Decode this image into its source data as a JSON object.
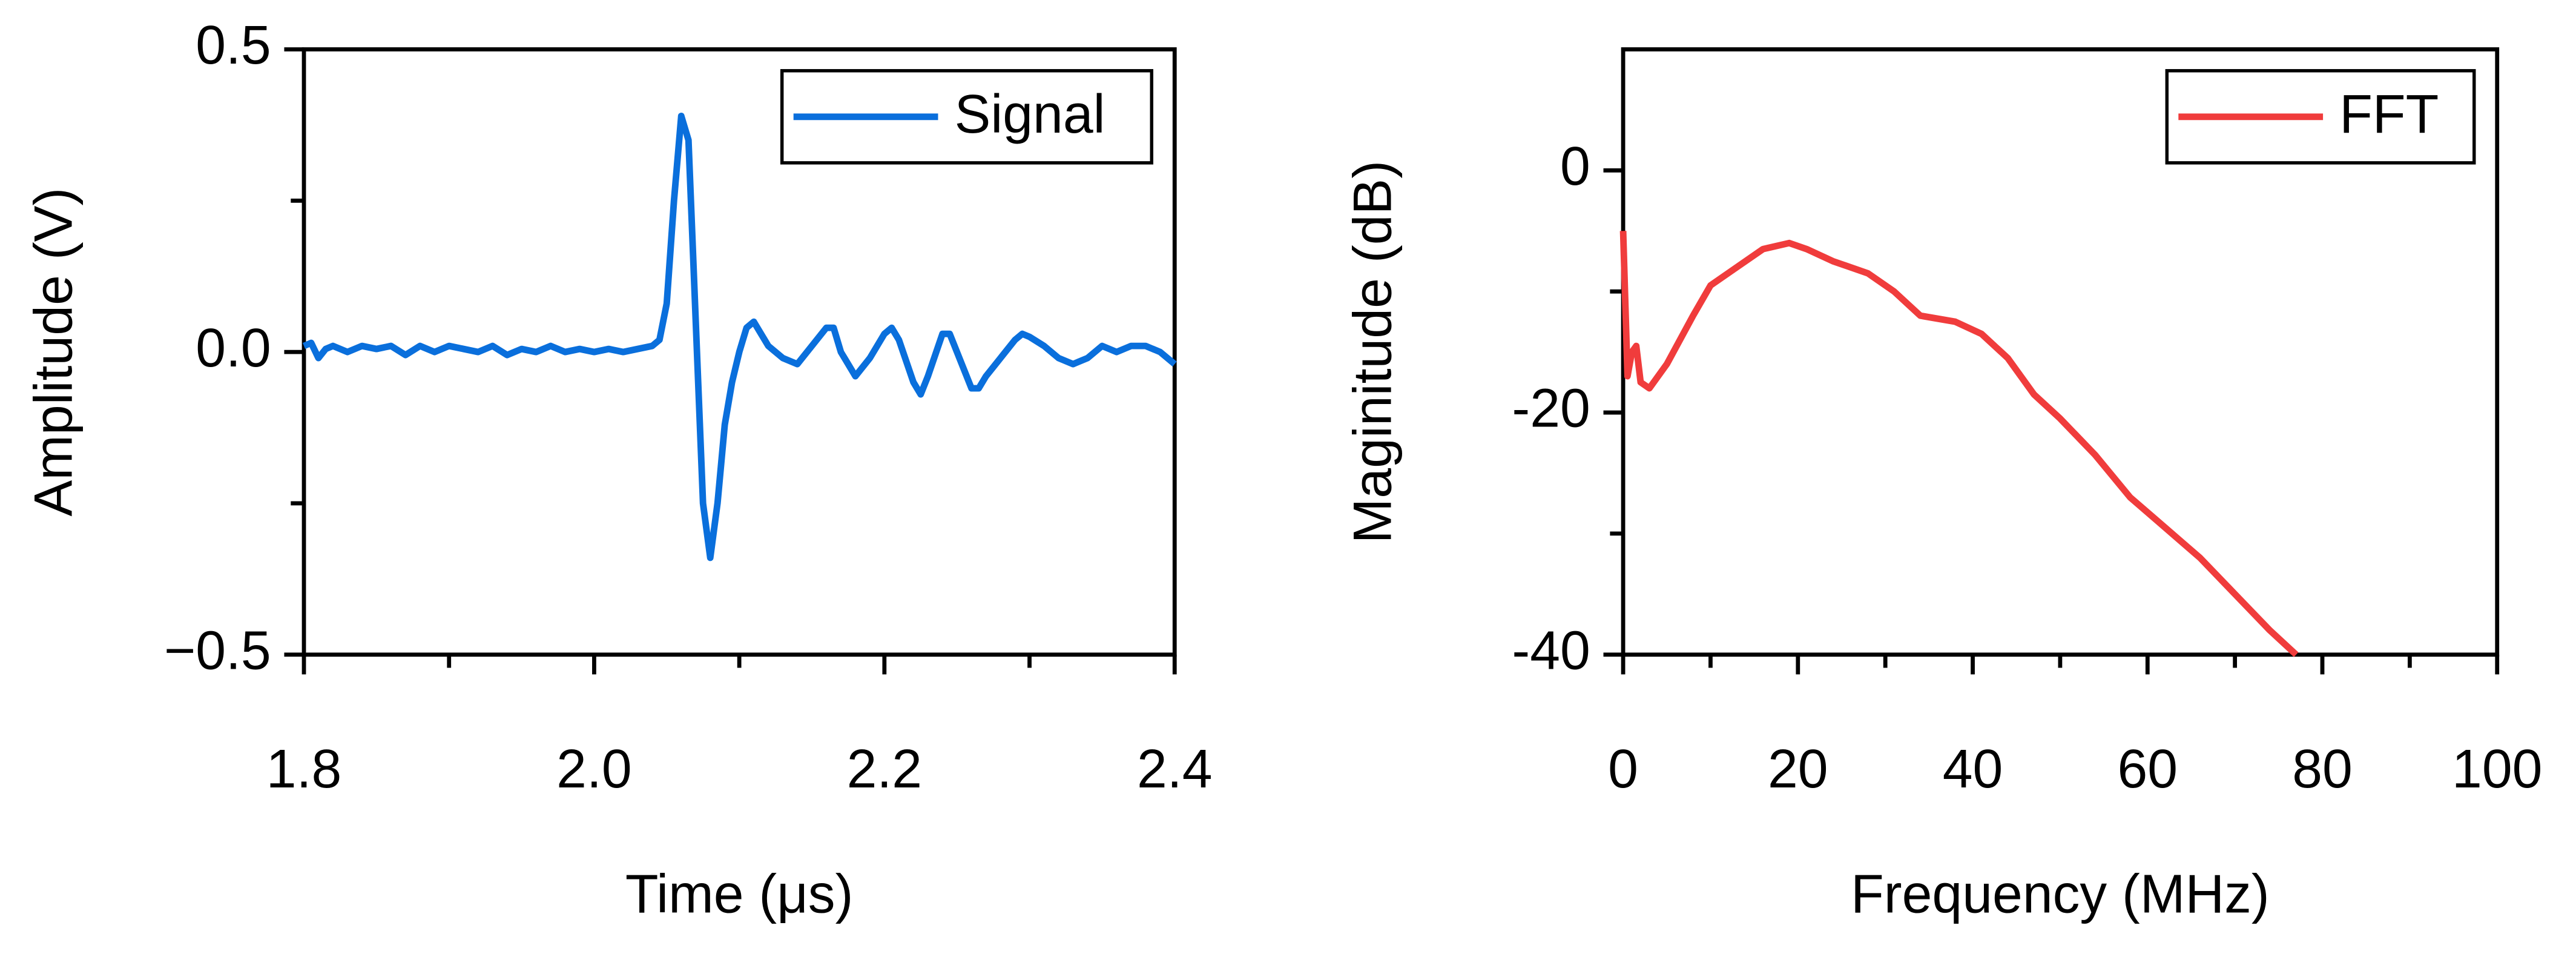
{
  "chart_data": [
    {
      "type": "line",
      "xlabel": "Time (μs)",
      "ylabel": "Amplitude (V)",
      "legend": "upper right",
      "xlim": [
        1.8,
        2.4
      ],
      "ylim": [
        -0.5,
        0.5
      ],
      "xticks": [
        1.8,
        {
          "value": 2,
          "label": "2.0"
        },
        2.2,
        2.4
      ],
      "yticks": [
        {
          "value": -0.5,
          "label": "−0.5"
        },
        {
          "value": 0,
          "label": "0.0"
        },
        0.5
      ],
      "x": [
        1.8,
        1.805,
        1.81,
        1.815,
        1.82,
        1.83,
        1.84,
        1.85,
        1.86,
        1.87,
        1.88,
        1.89,
        1.9,
        1.91,
        1.92,
        1.93,
        1.94,
        1.95,
        1.96,
        1.97,
        1.98,
        1.99,
        2.0,
        2.01,
        2.02,
        2.03,
        2.04,
        2.045,
        2.05,
        2.055,
        2.06,
        2.065,
        2.07,
        2.075,
        2.08,
        2.085,
        2.09,
        2.095,
        2.1,
        2.105,
        2.11,
        2.115,
        2.12,
        2.13,
        2.14,
        2.15,
        2.16,
        2.165,
        2.17,
        2.18,
        2.19,
        2.2,
        2.205,
        2.21,
        2.22,
        2.225,
        2.23,
        2.24,
        2.245,
        2.25,
        2.26,
        2.265,
        2.27,
        2.28,
        2.29,
        2.295,
        2.3,
        2.31,
        2.32,
        2.33,
        2.34,
        2.35,
        2.36,
        2.37,
        2.38,
        2.39,
        2.4
      ],
      "series": [
        {
          "name": "Signal",
          "color": "#0a6fdc",
          "values": [
            0.01,
            0.015,
            -0.01,
            0.005,
            0.01,
            0.0,
            0.01,
            0.005,
            0.01,
            -0.005,
            0.01,
            0.0,
            0.01,
            0.005,
            0.0,
            0.01,
            -0.005,
            0.005,
            0.0,
            0.01,
            0.0,
            0.005,
            0.0,
            0.005,
            0.0,
            0.005,
            0.01,
            0.02,
            0.08,
            0.25,
            0.39,
            0.35,
            0.05,
            -0.25,
            -0.34,
            -0.25,
            -0.12,
            -0.05,
            0.0,
            0.04,
            0.05,
            0.03,
            0.01,
            -0.01,
            -0.02,
            0.01,
            0.04,
            0.04,
            0.0,
            -0.04,
            -0.01,
            0.03,
            0.04,
            0.02,
            -0.05,
            -0.07,
            -0.04,
            0.03,
            0.03,
            0.0,
            -0.06,
            -0.06,
            -0.04,
            -0.01,
            0.02,
            0.03,
            0.025,
            0.01,
            -0.01,
            -0.02,
            -0.01,
            0.01,
            0.0,
            0.01,
            0.01,
            0.0,
            -0.02
          ]
        }
      ]
    },
    {
      "type": "line",
      "xlabel": "Frequency (MHz)",
      "ylabel": "Maginitude (dB)",
      "legend": "upper right",
      "xlim": [
        0,
        100
      ],
      "ylim": [
        -40,
        10
      ],
      "xticks": [
        0,
        20,
        40,
        60,
        80,
        100
      ],
      "yticks": [
        -40,
        -20,
        0
      ],
      "x": [
        0,
        0.5,
        1,
        1.5,
        2,
        3,
        5,
        8,
        10,
        13,
        16,
        19,
        21,
        24,
        28,
        31,
        34,
        38,
        41,
        44,
        47,
        50,
        54,
        58,
        62,
        66,
        70,
        74,
        77
      ],
      "series": [
        {
          "name": "FFT",
          "color": "#f03c3c",
          "values": [
            -5,
            -17,
            -15,
            -14.5,
            -17.5,
            -18,
            -16,
            -12,
            -9.5,
            -8,
            -6.5,
            -6,
            -6.5,
            -7.5,
            -8.5,
            -10,
            -12,
            -12.5,
            -13.5,
            -15.5,
            -18.5,
            -20.5,
            -23.5,
            -27,
            -29.5,
            -32,
            -35,
            -38,
            -40
          ]
        }
      ]
    }
  ]
}
